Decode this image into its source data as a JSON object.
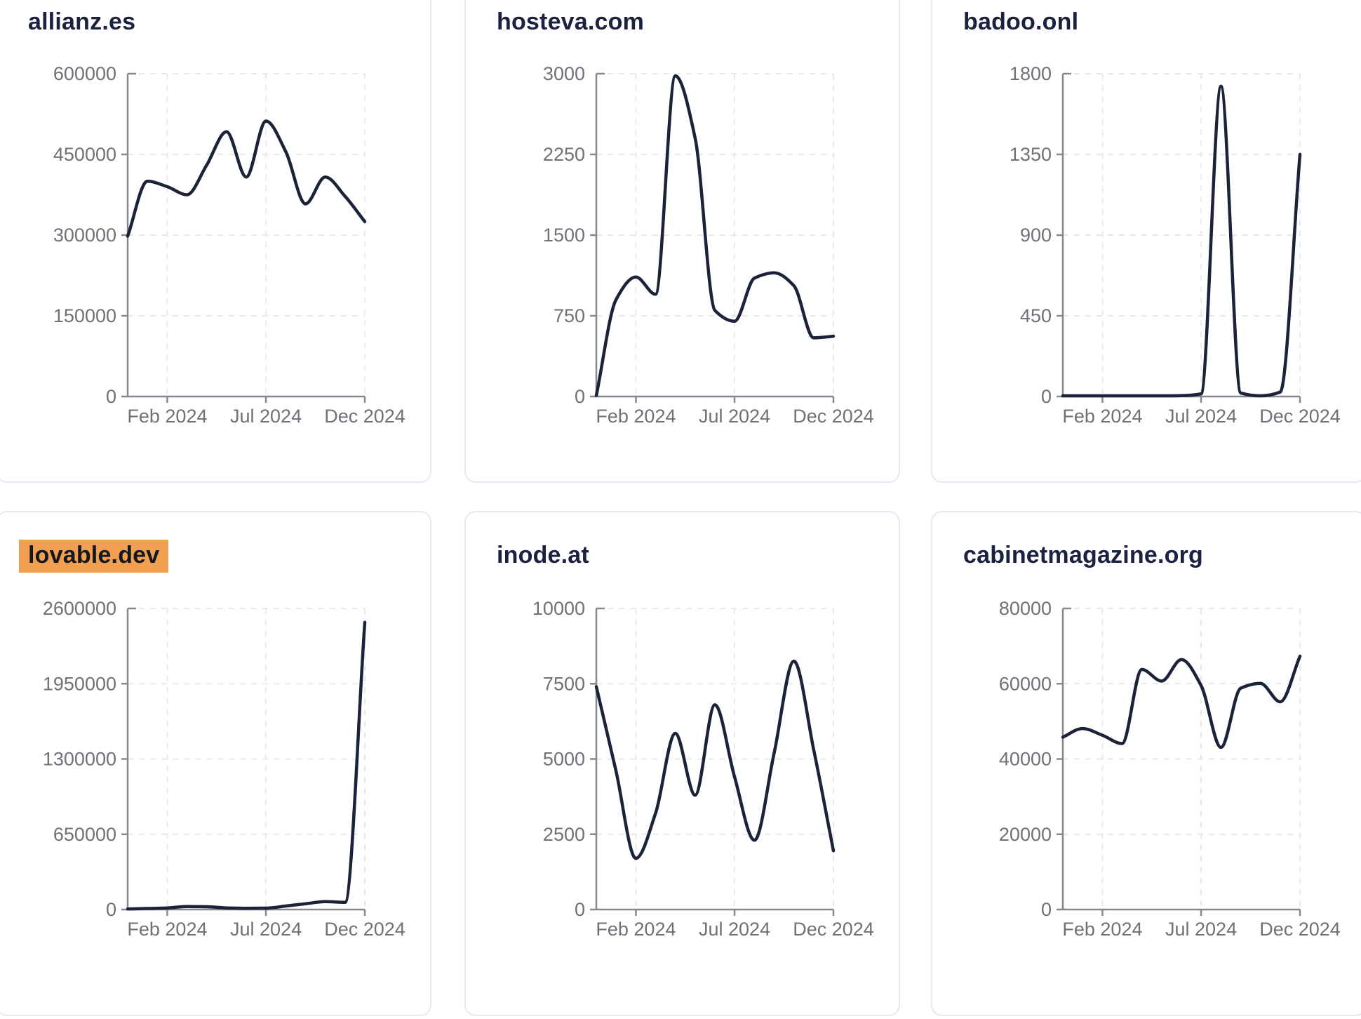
{
  "colors": {
    "line": "#1c2238",
    "title": "#1b2240",
    "axis": "#85898f",
    "tick_label": "#6e7277",
    "grid": "#e8e9ee",
    "card_border": "#e7eaf3",
    "highlight_bg": "#f0a050",
    "highlight_text": "#15181f",
    "background": "#ffffff"
  },
  "x_axis": {
    "tick_labels": [
      "Feb 2024",
      "Jul 2024",
      "Dec 2024"
    ],
    "tick_positions": [
      0.167,
      0.583,
      1
    ]
  },
  "cards": [
    {
      "title": "allianz.es",
      "highlighted": false,
      "chart_data": {
        "type": "line",
        "title": "allianz.es",
        "x_tick_labels": [
          "Feb 2024",
          "Jul 2024",
          "Dec 2024"
        ],
        "x_tick_positions": [
          0.167,
          0.583,
          1
        ],
        "y_ticks": [
          0,
          150000,
          300000,
          450000,
          600000
        ],
        "ylim": [
          0,
          600000
        ],
        "grid": "dashed",
        "x": [
          0,
          0.083,
          0.167,
          0.25,
          0.333,
          0.417,
          0.5,
          0.583,
          0.667,
          0.75,
          0.833,
          0.917,
          1
        ],
        "values": [
          298000,
          400000,
          390000,
          375000,
          430000,
          492000,
          408000,
          512000,
          455000,
          358000,
          408000,
          372000,
          325000
        ]
      }
    },
    {
      "title": "hosteva.com",
      "highlighted": false,
      "chart_data": {
        "type": "line",
        "title": "hosteva.com",
        "x_tick_labels": [
          "Feb 2024",
          "Jul 2024",
          "Dec 2024"
        ],
        "x_tick_positions": [
          0.167,
          0.583,
          1
        ],
        "y_ticks": [
          0,
          750,
          1500,
          2250,
          3000
        ],
        "ylim": [
          0,
          3000
        ],
        "grid": "dashed",
        "x": [
          0,
          0.083,
          0.167,
          0.25,
          0.333,
          0.417,
          0.5,
          0.583,
          0.667,
          0.75,
          0.833,
          0.917,
          1
        ],
        "values": [
          10,
          900,
          1110,
          950,
          2980,
          2400,
          800,
          700,
          1100,
          1150,
          1030,
          545,
          560
        ]
      }
    },
    {
      "title": "badoo.onl",
      "highlighted": false,
      "chart_data": {
        "type": "line",
        "title": "badoo.onl",
        "x_tick_labels": [
          "Feb 2024",
          "Jul 2024",
          "Dec 2024"
        ],
        "x_tick_positions": [
          0.167,
          0.583,
          1
        ],
        "y_ticks": [
          0,
          450,
          900,
          1350,
          1800
        ],
        "ylim": [
          0,
          1800
        ],
        "grid": "dashed",
        "x": [
          0,
          0.083,
          0.167,
          0.25,
          0.333,
          0.417,
          0.5,
          0.583,
          0.667,
          0.75,
          0.833,
          0.917,
          1
        ],
        "values": [
          4,
          4,
          4,
          4,
          4,
          4,
          5,
          15,
          1730,
          20,
          4,
          25,
          1350
        ]
      }
    },
    {
      "title": "lovable.dev",
      "highlighted": true,
      "chart_data": {
        "type": "line",
        "title": "lovable.dev",
        "x_tick_labels": [
          "Feb 2024",
          "Jul 2024",
          "Dec 2024"
        ],
        "x_tick_positions": [
          0.167,
          0.583,
          1
        ],
        "y_ticks": [
          0,
          650000,
          1300000,
          1950000,
          2600000
        ],
        "ylim": [
          0,
          2600000
        ],
        "grid": "dashed",
        "x": [
          0,
          0.083,
          0.167,
          0.25,
          0.333,
          0.417,
          0.5,
          0.583,
          0.667,
          0.75,
          0.833,
          0.917,
          1
        ],
        "values": [
          5000,
          9000,
          14000,
          26000,
          24000,
          14000,
          11000,
          12000,
          30000,
          50000,
          68000,
          62000,
          2480000
        ]
      }
    },
    {
      "title": "inode.at",
      "highlighted": false,
      "chart_data": {
        "type": "line",
        "title": "inode.at",
        "x_tick_labels": [
          "Feb 2024",
          "Jul 2024",
          "Dec 2024"
        ],
        "x_tick_positions": [
          0.167,
          0.583,
          1
        ],
        "y_ticks": [
          0,
          2500,
          5000,
          7500,
          10000
        ],
        "ylim": [
          0,
          10000
        ],
        "grid": "dashed",
        "x": [
          0,
          0.083,
          0.167,
          0.25,
          0.333,
          0.417,
          0.5,
          0.583,
          0.667,
          0.75,
          0.833,
          0.917,
          1
        ],
        "values": [
          7400,
          4600,
          1700,
          3200,
          5850,
          3800,
          6800,
          4400,
          2300,
          5200,
          8250,
          5300,
          1950
        ]
      }
    },
    {
      "title": "cabinetmagazine.org",
      "highlighted": false,
      "chart_data": {
        "type": "line",
        "title": "cabinetmagazine.org",
        "x_tick_labels": [
          "Feb 2024",
          "Jul 2024",
          "Dec 2024"
        ],
        "x_tick_positions": [
          0.167,
          0.583,
          1
        ],
        "y_ticks": [
          0,
          20000,
          40000,
          60000,
          80000
        ],
        "ylim": [
          0,
          80000
        ],
        "grid": "dashed",
        "x": [
          0,
          0.083,
          0.167,
          0.25,
          0.333,
          0.417,
          0.5,
          0.583,
          0.667,
          0.75,
          0.833,
          0.917,
          1
        ],
        "values": [
          45800,
          48100,
          46300,
          44100,
          63800,
          60700,
          66400,
          59500,
          43100,
          58800,
          60100,
          55200,
          67300
        ]
      }
    }
  ]
}
